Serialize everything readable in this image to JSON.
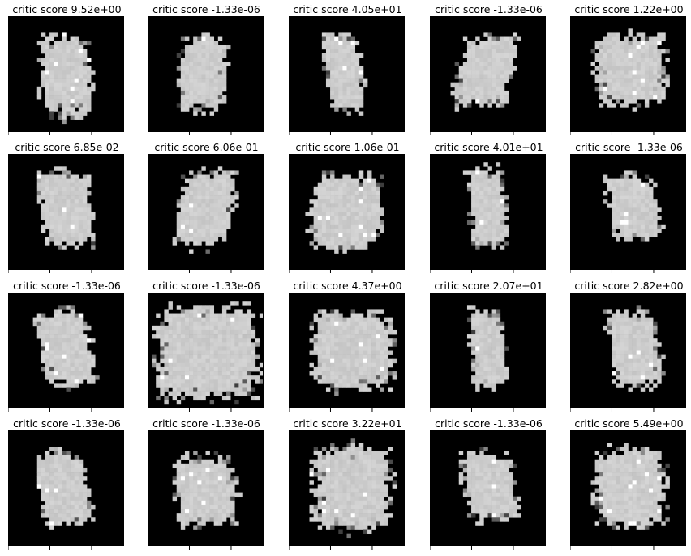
{
  "chart_data": {
    "type": "heatmap",
    "colormap": "grayscale",
    "grid": false,
    "layout": {
      "rows": 4,
      "cols": 5
    },
    "panels": [
      {
        "title": "critic score 9.52e+00",
        "score": 9.52
      },
      {
        "title": "critic score -1.33e-06",
        "score": -1.33e-06
      },
      {
        "title": "critic score 4.05e+01",
        "score": 40.5
      },
      {
        "title": "critic score -1.33e-06",
        "score": -1.33e-06
      },
      {
        "title": "critic score 1.22e+00",
        "score": 1.22
      },
      {
        "title": "critic score 6.85e-02",
        "score": 0.0685
      },
      {
        "title": "critic score 6.06e-01",
        "score": 0.606
      },
      {
        "title": "critic score 1.06e-01",
        "score": 0.106
      },
      {
        "title": "critic score 4.01e+01",
        "score": 40.1
      },
      {
        "title": "critic score -1.33e-06",
        "score": -1.33e-06
      },
      {
        "title": "critic score -1.33e-06",
        "score": -1.33e-06
      },
      {
        "title": "critic score -1.33e-06",
        "score": -1.33e-06
      },
      {
        "title": "critic score 4.37e+00",
        "score": 4.37
      },
      {
        "title": "critic score 2.07e+01",
        "score": 20.7
      },
      {
        "title": "critic score 2.82e+00",
        "score": 2.82
      },
      {
        "title": "critic score -1.33e-06",
        "score": -1.33e-06
      },
      {
        "title": "critic score -1.33e-06",
        "score": -1.33e-06
      },
      {
        "title": "critic score 3.22e+01",
        "score": 32.2
      },
      {
        "title": "critic score -1.33e-06",
        "score": -1.33e-06
      },
      {
        "title": "critic score 5.49e+00",
        "score": 5.49
      }
    ]
  }
}
